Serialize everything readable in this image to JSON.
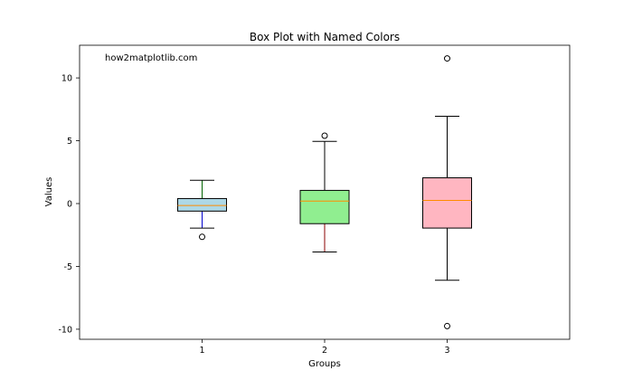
{
  "chart_data": {
    "type": "box",
    "title": "Box Plot with Named Colors",
    "xlabel": "Groups",
    "ylabel": "Values",
    "annotation": "how2matplotlib.com",
    "ylim": [
      -10.8,
      12.6
    ],
    "yticks": [
      -10,
      -5,
      0,
      5,
      10
    ],
    "ytick_labels": [
      "-10",
      "-5",
      "0",
      "5",
      "10"
    ],
    "categories": [
      "1",
      "2",
      "3"
    ],
    "grid": false,
    "boxes": [
      {
        "name": "1",
        "whisker_low": -1.95,
        "q1": -0.6,
        "median": -0.15,
        "q3": 0.4,
        "whisker_high": 1.85,
        "outliers": [
          -2.65
        ],
        "box_color": "#add8e6",
        "lower_whisker_color": "#0000cd",
        "upper_whisker_color": "#006400"
      },
      {
        "name": "2",
        "whisker_low": -3.85,
        "q1": -1.6,
        "median": 0.2,
        "q3": 1.05,
        "whisker_high": 4.95,
        "outliers": [
          5.4
        ],
        "box_color": "#90ee90",
        "lower_whisker_color": "#8b0000",
        "upper_whisker_color": "#000000"
      },
      {
        "name": "3",
        "whisker_low": -6.1,
        "q1": -1.95,
        "median": 0.25,
        "q3": 2.05,
        "whisker_high": 6.95,
        "outliers": [
          11.55,
          -9.75
        ],
        "box_color": "#ffb6c1",
        "lower_whisker_color": "#000000",
        "upper_whisker_color": "#000000"
      }
    ],
    "median_color": "#ff8c00"
  }
}
